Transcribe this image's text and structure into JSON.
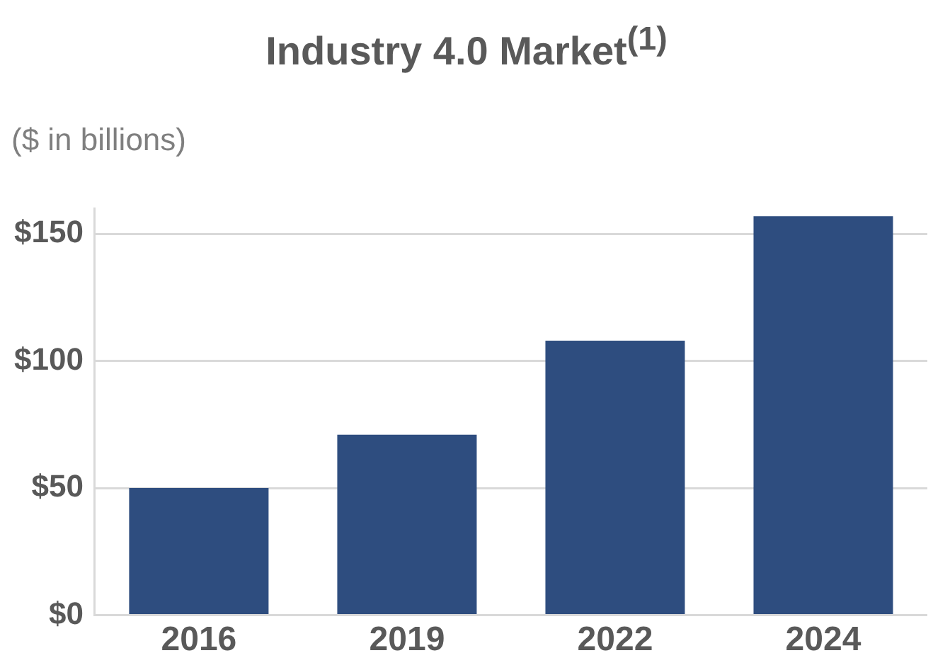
{
  "chart_data": {
    "type": "bar",
    "title": "Industry 4.0 Market$^{(1)}$",
    "ylabel": "($ in billions)",
    "categories": [
      "2016",
      "2019",
      "2022",
      "2024"
    ],
    "values": [
      50,
      71,
      108,
      157
    ],
    "color": "#2e4d7f",
    "ylim": [
      0,
      160
    ],
    "yticks": [
      {
        "value": 0,
        "label": "$0"
      },
      {
        "value": 50,
        "label": "$50"
      },
      {
        "value": 100,
        "label": "$100"
      },
      {
        "value": 150,
        "label": "$150"
      }
    ],
    "grid": "y",
    "legend": false
  }
}
